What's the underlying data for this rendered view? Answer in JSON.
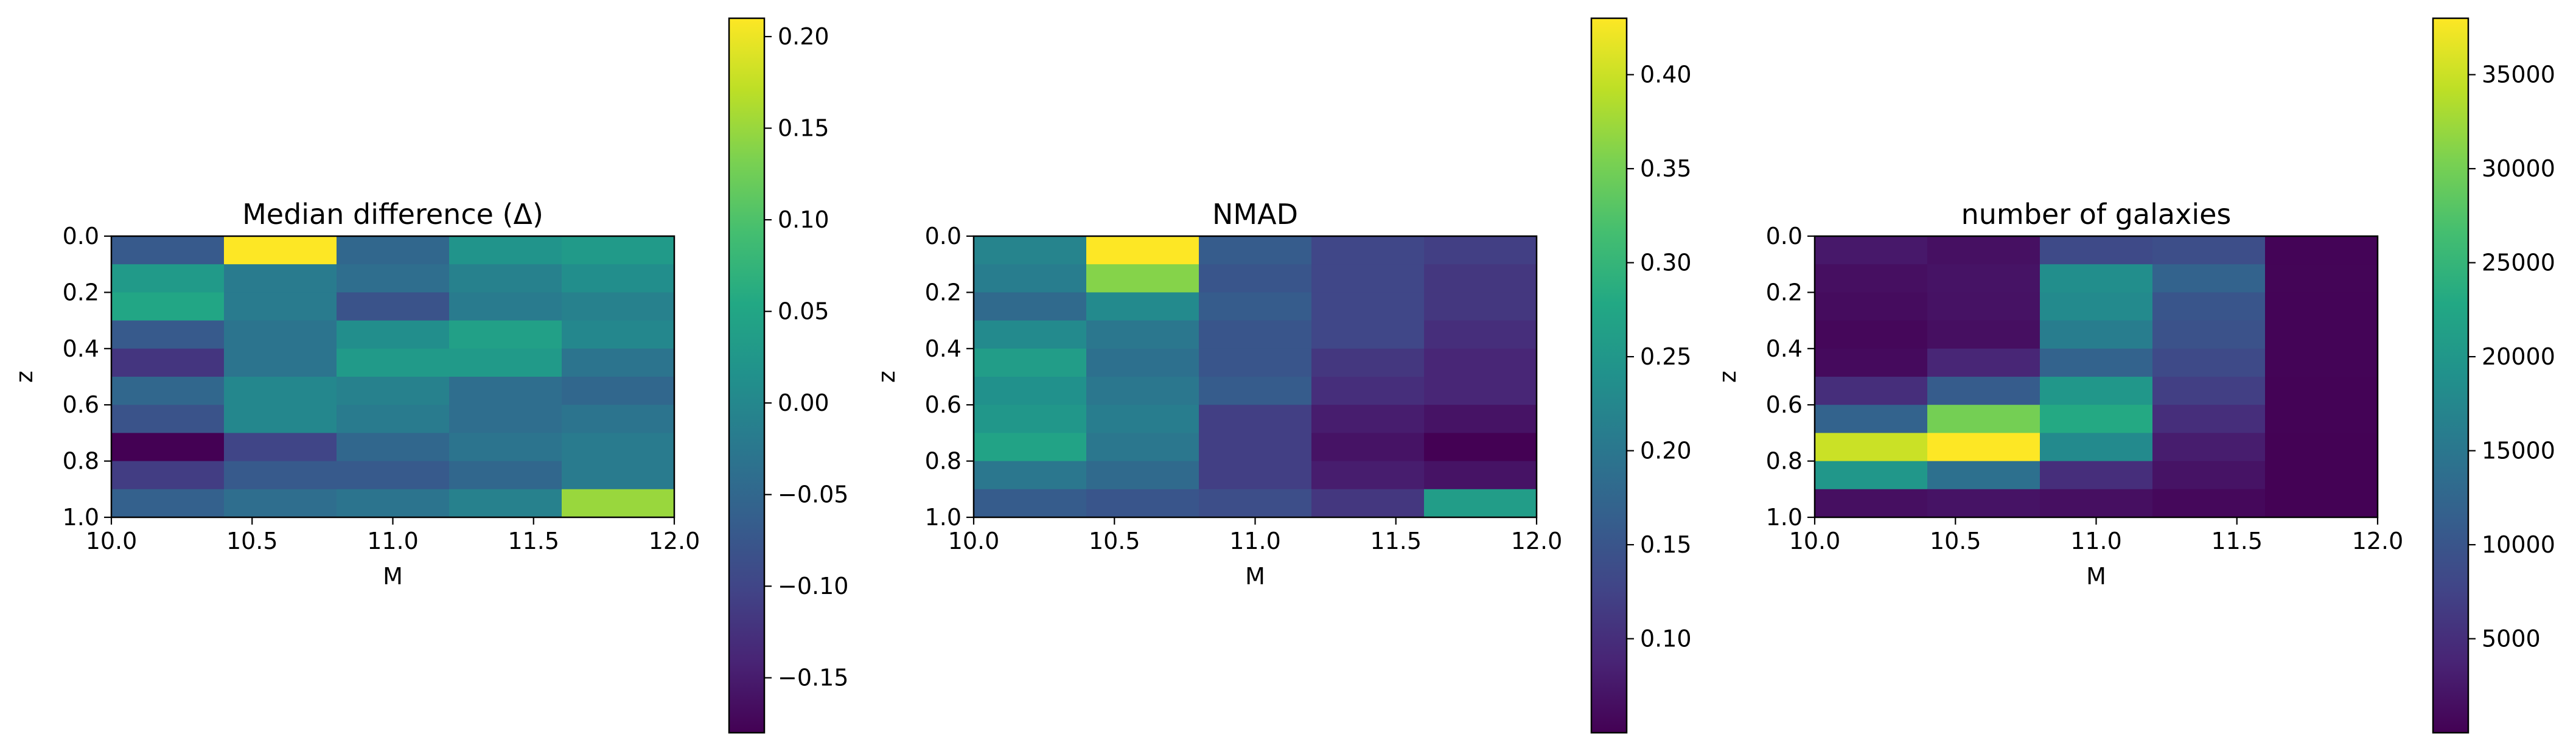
{
  "chart_data": [
    {
      "type": "heatmap",
      "title": "Median difference (Δ)",
      "xlabel": "M",
      "ylabel": "z",
      "xlim": [
        10.0,
        12.0
      ],
      "ylim": [
        0.0,
        1.0
      ],
      "y_inverted": true,
      "x_edges": [
        10.0,
        10.4,
        10.8,
        11.2,
        11.6,
        12.0
      ],
      "y_edges": [
        0.0,
        0.1,
        0.2,
        0.3,
        0.4,
        0.5,
        0.6,
        0.7,
        0.8,
        0.9,
        1.0
      ],
      "xticks": [
        "10.0",
        "10.5",
        "11.0",
        "11.5",
        "12.0"
      ],
      "yticks": [
        "0.0",
        "0.2",
        "0.4",
        "0.6",
        "0.8",
        "1.0"
      ],
      "colormap": "viridis",
      "clim": [
        -0.18,
        0.21
      ],
      "colorbar_ticks": [
        "-0.15",
        "-0.10",
        "-0.05",
        "0.00",
        "0.05",
        "0.10",
        "0.15",
        "0.20"
      ],
      "colorbar_tick_values": [
        -0.15,
        -0.1,
        -0.05,
        0.0,
        0.05,
        0.1,
        0.15,
        0.2
      ],
      "values": [
        [
          -0.07,
          0.21,
          -0.05,
          0.02,
          0.03
        ],
        [
          0.03,
          -0.02,
          -0.04,
          -0.01,
          0.01
        ],
        [
          0.05,
          -0.02,
          -0.08,
          -0.02,
          -0.01
        ],
        [
          -0.07,
          -0.03,
          0.01,
          0.04,
          0.0
        ],
        [
          -0.12,
          -0.03,
          0.03,
          0.03,
          -0.03
        ],
        [
          -0.05,
          0.0,
          -0.01,
          -0.04,
          -0.05
        ],
        [
          -0.08,
          0.0,
          -0.02,
          -0.04,
          -0.03
        ],
        [
          -0.18,
          -0.1,
          -0.05,
          -0.03,
          -0.02
        ],
        [
          -0.11,
          -0.07,
          -0.07,
          -0.05,
          -0.02
        ],
        [
          -0.06,
          -0.04,
          -0.03,
          -0.01,
          0.15
        ]
      ]
    },
    {
      "type": "heatmap",
      "title": "NMAD",
      "xlabel": "M",
      "ylabel": "z",
      "xlim": [
        10.0,
        12.0
      ],
      "ylim": [
        0.0,
        1.0
      ],
      "y_inverted": true,
      "x_edges": [
        10.0,
        10.4,
        10.8,
        11.2,
        11.6,
        12.0
      ],
      "y_edges": [
        0.0,
        0.1,
        0.2,
        0.3,
        0.4,
        0.5,
        0.6,
        0.7,
        0.8,
        0.9,
        1.0
      ],
      "xticks": [
        "10.0",
        "10.5",
        "11.0",
        "11.5",
        "12.0"
      ],
      "yticks": [
        "0.0",
        "0.2",
        "0.4",
        "0.6",
        "0.8",
        "1.0"
      ],
      "colormap": "viridis",
      "clim": [
        0.05,
        0.43
      ],
      "colorbar_ticks": [
        "0.10",
        "0.15",
        "0.20",
        "0.25",
        "0.30",
        "0.35",
        "0.40"
      ],
      "colorbar_tick_values": [
        0.1,
        0.15,
        0.2,
        0.25,
        0.3,
        0.35,
        0.4
      ],
      "values": [
        [
          0.22,
          0.43,
          0.16,
          0.13,
          0.12
        ],
        [
          0.21,
          0.36,
          0.15,
          0.13,
          0.11
        ],
        [
          0.18,
          0.23,
          0.16,
          0.13,
          0.11
        ],
        [
          0.23,
          0.2,
          0.15,
          0.13,
          0.1
        ],
        [
          0.26,
          0.19,
          0.15,
          0.11,
          0.09
        ],
        [
          0.24,
          0.2,
          0.16,
          0.1,
          0.09
        ],
        [
          0.25,
          0.21,
          0.12,
          0.08,
          0.07
        ],
        [
          0.27,
          0.2,
          0.12,
          0.07,
          0.05
        ],
        [
          0.2,
          0.18,
          0.12,
          0.08,
          0.07
        ],
        [
          0.16,
          0.15,
          0.14,
          0.11,
          0.26
        ]
      ]
    },
    {
      "type": "heatmap",
      "title": "number of galaxies",
      "xlabel": "M",
      "ylabel": "z",
      "xlim": [
        10.0,
        12.0
      ],
      "ylim": [
        0.0,
        1.0
      ],
      "y_inverted": true,
      "x_edges": [
        10.0,
        10.4,
        10.8,
        11.2,
        11.6,
        12.0
      ],
      "y_edges": [
        0.0,
        0.1,
        0.2,
        0.3,
        0.4,
        0.5,
        0.6,
        0.7,
        0.8,
        0.9,
        1.0
      ],
      "xticks": [
        "10.0",
        "10.5",
        "11.0",
        "11.5",
        "12.0"
      ],
      "yticks": [
        "0.0",
        "0.2",
        "0.4",
        "0.6",
        "0.8",
        "1.0"
      ],
      "colormap": "viridis",
      "clim": [
        0,
        38000
      ],
      "colorbar_ticks": [
        "5000",
        "10000",
        "15000",
        "20000",
        "25000",
        "30000",
        "35000"
      ],
      "colorbar_tick_values": [
        5000,
        10000,
        15000,
        20000,
        25000,
        30000,
        35000
      ],
      "values": [
        [
          2500,
          1600,
          8500,
          9000,
          300
        ],
        [
          1500,
          2000,
          18500,
          12000,
          400
        ],
        [
          1200,
          1800,
          18000,
          10000,
          350
        ],
        [
          700,
          1500,
          16000,
          9500,
          300
        ],
        [
          1000,
          4000,
          12000,
          8500,
          300
        ],
        [
          5000,
          11000,
          20000,
          7000,
          250
        ],
        [
          12000,
          30000,
          23000,
          5000,
          200
        ],
        [
          35000,
          38000,
          18000,
          3000,
          150
        ],
        [
          20000,
          14000,
          5000,
          2000,
          100
        ],
        [
          1500,
          2000,
          1500,
          800,
          100
        ]
      ]
    }
  ]
}
